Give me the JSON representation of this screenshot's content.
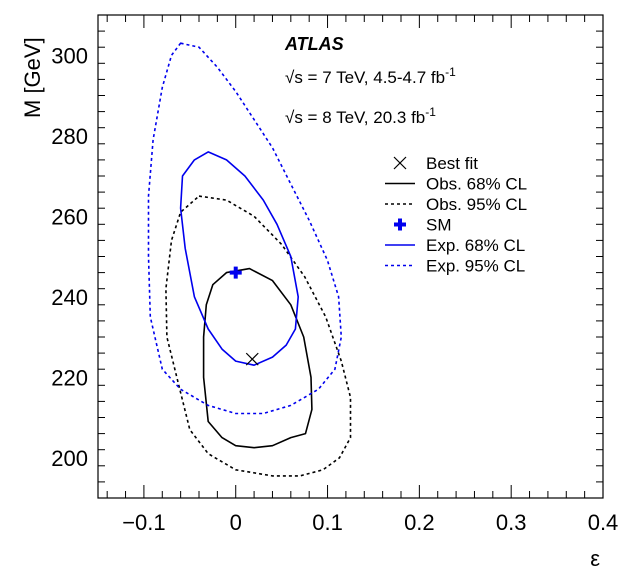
{
  "chart_data": {
    "type": "contour",
    "xlabel": "ε",
    "ylabel": "M [GeV]",
    "xlim": [
      -0.15,
      0.4
    ],
    "ylim": [
      190,
      310
    ],
    "x_ticks": [
      "−0.1",
      "0",
      "0.1",
      "0.2",
      "0.3",
      "0.4"
    ],
    "x_tick_values": [
      -0.1,
      0,
      0.1,
      0.2,
      0.3,
      0.4
    ],
    "y_ticks": [
      "200",
      "220",
      "240",
      "260",
      "280",
      "300"
    ],
    "y_tick_values": [
      200,
      220,
      240,
      260,
      280,
      300
    ],
    "annotations": {
      "experiment": "ATLAS",
      "line1": "√s = 7 TeV, 4.5-4.7 fb",
      "line1_sup": "-1",
      "line2": "√s = 8 TeV, 20.3 fb",
      "line2_sup": "-1"
    },
    "points": [
      {
        "name": "Best fit",
        "x": 0.018,
        "y": 224.5,
        "marker": "x",
        "color": "#000000"
      },
      {
        "name": "SM",
        "x": 0.0,
        "y": 246.0,
        "marker": "cross",
        "color": "#0000ee"
      }
    ],
    "series": [
      {
        "name": "Obs. 68% CL",
        "color": "#000000",
        "dash": "solid",
        "points": [
          [
            0.015,
            247
          ],
          [
            0.04,
            244
          ],
          [
            0.06,
            238
          ],
          [
            0.074,
            230
          ],
          [
            0.082,
            220
          ],
          [
            0.083,
            212
          ],
          [
            0.076,
            206
          ],
          [
            0.06,
            205
          ],
          [
            0.04,
            203
          ],
          [
            0.02,
            202.5
          ],
          [
            0.0,
            203
          ],
          [
            -0.015,
            205
          ],
          [
            -0.03,
            209
          ],
          [
            -0.035,
            220
          ],
          [
            -0.035,
            230
          ],
          [
            -0.032,
            238
          ],
          [
            -0.025,
            243
          ],
          [
            -0.01,
            246
          ],
          [
            0.015,
            247
          ]
        ]
      },
      {
        "name": "Obs. 95% CL",
        "color": "#000000",
        "dash": "dotted",
        "points": [
          [
            -0.04,
            265
          ],
          [
            -0.01,
            264
          ],
          [
            0.02,
            260
          ],
          [
            0.05,
            253
          ],
          [
            0.075,
            245
          ],
          [
            0.098,
            235
          ],
          [
            0.115,
            224
          ],
          [
            0.125,
            215
          ],
          [
            0.125,
            205
          ],
          [
            0.113,
            200
          ],
          [
            0.095,
            197
          ],
          [
            0.07,
            195.5
          ],
          [
            0.04,
            195.5
          ],
          [
            0.0,
            197
          ],
          [
            -0.03,
            201
          ],
          [
            -0.05,
            207
          ],
          [
            -0.062,
            218
          ],
          [
            -0.075,
            230
          ],
          [
            -0.076,
            242
          ],
          [
            -0.07,
            254
          ],
          [
            -0.06,
            261
          ],
          [
            -0.04,
            265
          ]
        ]
      },
      {
        "name": "Exp. 68% CL",
        "color": "#0000ee",
        "dash": "solid",
        "points": [
          [
            -0.03,
            276
          ],
          [
            -0.01,
            274
          ],
          [
            0.01,
            270
          ],
          [
            0.03,
            264
          ],
          [
            0.045,
            258
          ],
          [
            0.06,
            250
          ],
          [
            0.068,
            240
          ],
          [
            0.065,
            232
          ],
          [
            0.055,
            228
          ],
          [
            0.04,
            225
          ],
          [
            0.02,
            223
          ],
          [
            0.0,
            224
          ],
          [
            -0.015,
            227
          ],
          [
            -0.03,
            232
          ],
          [
            -0.045,
            240
          ],
          [
            -0.055,
            252
          ],
          [
            -0.06,
            262
          ],
          [
            -0.058,
            270
          ],
          [
            -0.045,
            274
          ],
          [
            -0.03,
            276
          ]
        ]
      },
      {
        "name": "Exp. 95% CL",
        "color": "#0000ee",
        "dash": "dotted",
        "points": [
          [
            -0.06,
            303
          ],
          [
            -0.04,
            302
          ],
          [
            -0.02,
            297
          ],
          [
            0.0,
            291
          ],
          [
            0.02,
            284
          ],
          [
            0.04,
            277
          ],
          [
            0.06,
            268
          ],
          [
            0.08,
            259
          ],
          [
            0.1,
            249
          ],
          [
            0.112,
            240
          ],
          [
            0.115,
            230
          ],
          [
            0.108,
            222
          ],
          [
            0.09,
            217
          ],
          [
            0.06,
            213
          ],
          [
            0.03,
            211
          ],
          [
            0.0,
            211
          ],
          [
            -0.03,
            213
          ],
          [
            -0.06,
            217
          ],
          [
            -0.08,
            222
          ],
          [
            -0.093,
            235
          ],
          [
            -0.095,
            250
          ],
          [
            -0.095,
            265
          ],
          [
            -0.09,
            279
          ],
          [
            -0.08,
            292
          ],
          [
            -0.07,
            300
          ],
          [
            -0.06,
            303
          ]
        ]
      }
    ],
    "legend": {
      "placement": "right",
      "entries": [
        {
          "label": "Best fit",
          "symbol": "x",
          "color": "#000000"
        },
        {
          "label": "Obs. 68% CL",
          "symbol": "line",
          "color": "#000000",
          "dash": "solid"
        },
        {
          "label": "Obs. 95% CL",
          "symbol": "line",
          "color": "#000000",
          "dash": "dotted"
        },
        {
          "label": "SM",
          "symbol": "cross",
          "color": "#0000ee"
        },
        {
          "label": "Exp. 68% CL",
          "symbol": "line",
          "color": "#0000ee",
          "dash": "solid"
        },
        {
          "label": "Exp. 95% CL",
          "symbol": "line",
          "color": "#0000ee",
          "dash": "dotted"
        }
      ]
    },
    "grid": false
  }
}
